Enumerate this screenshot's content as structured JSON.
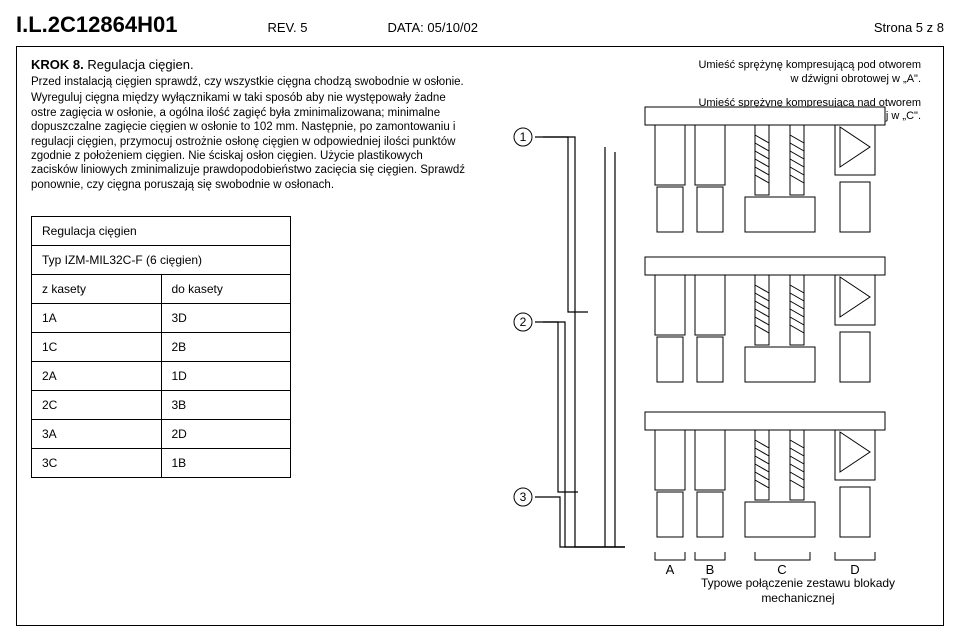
{
  "header": {
    "doc_id": "I.L.2C12864H01",
    "rev": "REV. 5",
    "data": "DATA: 05/10/02",
    "page": "Strona 5 z 8"
  },
  "step": {
    "title": "KROK 8.",
    "subtitle": "Regulacja cięgien.",
    "p1": "Przed instalacją cięgien sprawdź, czy wszystkie cięgna chodzą swobodnie w osłonie.",
    "p2": "Wyreguluj cięgna między wyłącznikami w taki sposób aby nie występowały żadne ostre zagięcia w osłonie, a ogólna ilość zagięć była zminimalizowana; minimalne dopuszczalne zagięcie cięgien w osłonie to 102 mm. Następnie, po zamontowaniu i regulacji cięgien, przymocuj ostrożnie osłonę cięgien w odpowiedniej ilości punktów zgodnie z położeniem cięgien. Nie ściskaj osłon cięgien. Użycie plastikowych zacisków liniowych zminimalizuje prawdopodobieństwo zacięcia się cięgien. Sprawdź ponownie, czy cięgna poruszają się swobodnie w osłonach."
  },
  "table": {
    "header": "Regulacja cięgien",
    "subheader": "Typ IZM-MIL32C-F (6 cięgien)",
    "col1": "z kasety",
    "col2": "do kasety",
    "rows": [
      {
        "a": "1A",
        "b": "3D"
      },
      {
        "a": "1C",
        "b": "2B"
      },
      {
        "a": "2A",
        "b": "1D"
      },
      {
        "a": "2C",
        "b": "3B"
      },
      {
        "a": "3A",
        "b": "2D"
      },
      {
        "a": "3C",
        "b": "1B"
      }
    ]
  },
  "notes": {
    "n1": "Umieść sprężynę kompresującą pod otworem w dźwigni obrotowej w „A\".",
    "n2": "Umieść sprężynę kompresującą nad otworem w dźwigni obrotowej w „C\"."
  },
  "caption": "Typowe połączenie zestawu blokady mechanicznej",
  "diagram": {
    "circle_labels": [
      "1",
      "2",
      "3"
    ],
    "bottom_labels": [
      "A",
      "B",
      "C",
      "D"
    ],
    "colors": {
      "stroke": "#000000",
      "bg": "#ffffff",
      "fill_light": "#f5f5f5"
    }
  }
}
